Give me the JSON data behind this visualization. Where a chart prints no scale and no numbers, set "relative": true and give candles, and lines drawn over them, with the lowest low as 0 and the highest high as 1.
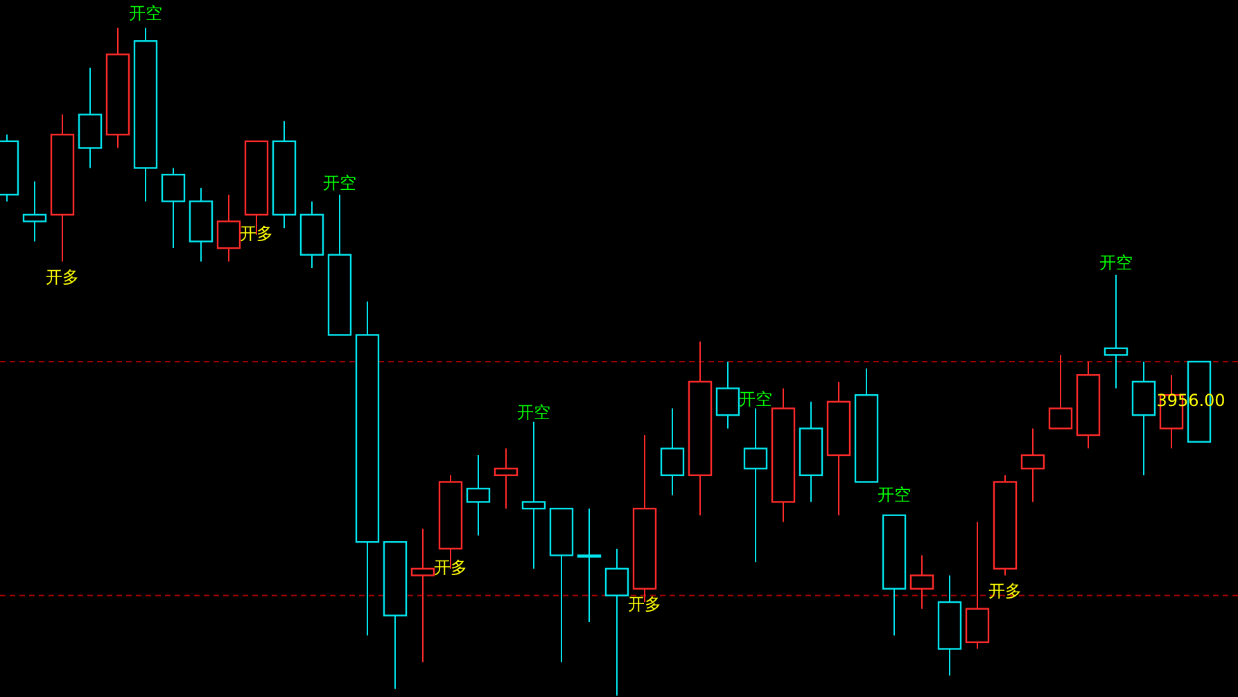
{
  "chart_data": {
    "type": "candlestick",
    "relative": true,
    "tick_labels": false,
    "categories": [
      null,
      null,
      null,
      null,
      null,
      null,
      null,
      null,
      null,
      null,
      null,
      null,
      null,
      null,
      null,
      null,
      null,
      null,
      null,
      null,
      null,
      null,
      null,
      null,
      null,
      null,
      null,
      null,
      null,
      null,
      null,
      null,
      null,
      null,
      null,
      null,
      null,
      null,
      null,
      null,
      null,
      null,
      null,
      null
    ],
    "ohlc": [
      [
        0.83,
        0.84,
        0.74,
        0.75
      ],
      [
        0.72,
        0.77,
        0.68,
        0.71
      ],
      [
        0.72,
        0.87,
        0.65,
        0.84
      ],
      [
        0.87,
        0.94,
        0.79,
        0.82
      ],
      [
        0.84,
        1.0,
        0.82,
        0.96
      ],
      [
        0.98,
        1.0,
        0.74,
        0.79
      ],
      [
        0.78,
        0.79,
        0.67,
        0.74
      ],
      [
        0.74,
        0.76,
        0.65,
        0.68
      ],
      [
        0.67,
        0.75,
        0.65,
        0.71
      ],
      [
        0.72,
        0.83,
        0.69,
        0.83
      ],
      [
        0.83,
        0.86,
        0.7,
        0.72
      ],
      [
        0.72,
        0.74,
        0.64,
        0.66
      ],
      [
        0.66,
        0.75,
        0.54,
        0.54
      ],
      [
        0.54,
        0.59,
        0.09,
        0.23
      ],
      [
        0.23,
        0.23,
        0.01,
        0.12
      ],
      [
        0.18,
        0.25,
        0.05,
        0.19
      ],
      [
        0.22,
        0.33,
        0.19,
        0.32
      ],
      [
        0.31,
        0.36,
        0.24,
        0.29
      ],
      [
        0.33,
        0.37,
        0.28,
        0.34
      ],
      [
        0.29,
        0.41,
        0.19,
        0.28
      ],
      [
        0.28,
        0.28,
        0.05,
        0.21
      ],
      [
        0.21,
        0.28,
        0.11,
        0.21
      ],
      [
        0.19,
        0.22,
        0.0,
        0.15
      ],
      [
        0.16,
        0.39,
        0.14,
        0.28
      ],
      [
        0.37,
        0.43,
        0.3,
        0.33
      ],
      [
        0.33,
        0.53,
        0.27,
        0.47
      ],
      [
        0.46,
        0.5,
        0.4,
        0.42
      ],
      [
        0.37,
        0.43,
        0.2,
        0.34
      ],
      [
        0.29,
        0.46,
        0.26,
        0.43
      ],
      [
        0.4,
        0.44,
        0.29,
        0.33
      ],
      [
        0.36,
        0.47,
        0.27,
        0.44
      ],
      [
        0.45,
        0.49,
        0.32,
        0.32
      ],
      [
        0.27,
        0.27,
        0.09,
        0.16
      ],
      [
        0.16,
        0.21,
        0.13,
        0.18
      ],
      [
        0.14,
        0.18,
        0.03,
        0.07
      ],
      [
        0.08,
        0.26,
        0.07,
        0.13
      ],
      [
        0.19,
        0.33,
        0.18,
        0.32
      ],
      [
        0.34,
        0.4,
        0.29,
        0.36
      ],
      [
        0.4,
        0.51,
        0.4,
        0.43
      ],
      [
        0.39,
        0.5,
        0.37,
        0.48
      ],
      [
        0.52,
        0.63,
        0.46,
        0.51
      ],
      [
        0.47,
        0.5,
        0.33,
        0.42
      ],
      [
        0.4,
        0.48,
        0.37,
        0.45
      ],
      [
        0.5,
        0.5,
        0.38,
        0.38
      ]
    ],
    "colors": [
      "#00e5ee",
      "#00e5ee",
      "#ff2a2a",
      "#00e5ee",
      "#ff2a2a",
      "#00e5ee",
      "#00e5ee",
      "#00e5ee",
      "#ff2a2a",
      "#ff2a2a",
      "#00e5ee",
      "#00e5ee",
      "#00e5ee",
      "#00e5ee",
      "#00e5ee",
      "#ff2a2a",
      "#ff2a2a",
      "#00e5ee",
      "#ff2a2a",
      "#00e5ee",
      "#00e5ee",
      "#00e5ee",
      "#00e5ee",
      "#ff2a2a",
      "#00e5ee",
      "#ff2a2a",
      "#00e5ee",
      "#00e5ee",
      "#ff2a2a",
      "#00e5ee",
      "#ff2a2a",
      "#00e5ee",
      "#00e5ee",
      "#ff2a2a",
      "#00e5ee",
      "#ff2a2a",
      "#ff2a2a",
      "#ff2a2a",
      "#ff2a2a",
      "#ff2a2a",
      "#00e5ee",
      "#00e5ee",
      "#ff2a2a",
      "#00e5ee"
    ],
    "ref_lines": [
      {
        "axis": "y",
        "value": 0.5,
        "color": "#a00000",
        "line_style": "dashed"
      },
      {
        "axis": "y",
        "value": 0.15,
        "color": "#a00000",
        "line_style": "dashed"
      }
    ],
    "annotations": [
      "开空",
      "开多",
      "开多",
      "开空",
      "开多",
      "开空",
      "开多",
      "开空",
      "开空",
      "开多",
      "开空",
      "3956.00"
    ]
  }
}
